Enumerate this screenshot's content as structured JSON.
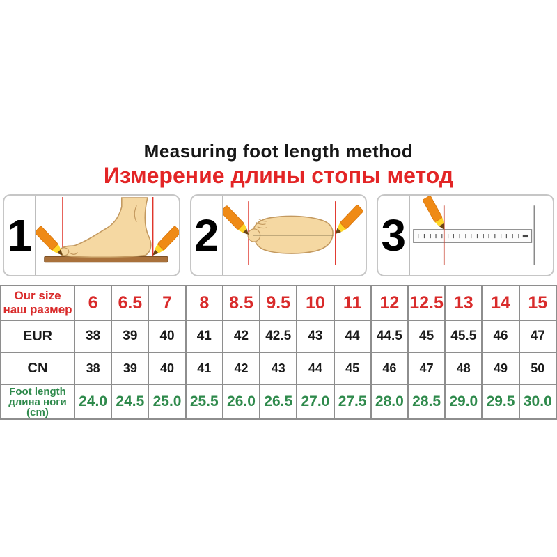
{
  "title": "Measuring foot length method",
  "subtitle": "Измерение длины стопы метод",
  "steps": [
    {
      "number": "1",
      "illustration": "foot-side-view-pencils-marking-toe-and-heel-on-board"
    },
    {
      "number": "2",
      "illustration": "foot-top-view-pencils-marking-length-line"
    },
    {
      "number": "3",
      "illustration": "ruler-measuring-distance-between-marks"
    }
  ],
  "size_table": {
    "rows": [
      {
        "key": "our_size",
        "color": "red",
        "header_lines": [
          "Our size",
          "наш размер"
        ],
        "values": [
          "6",
          "6.5",
          "7",
          "8",
          "8.5",
          "9.5",
          "10",
          "11",
          "12",
          "12.5",
          "13",
          "14",
          "15"
        ]
      },
      {
        "key": "eur",
        "color": "black",
        "header_lines": [
          "EUR"
        ],
        "values": [
          "38",
          "39",
          "40",
          "41",
          "42",
          "42.5",
          "43",
          "44",
          "44.5",
          "45",
          "45.5",
          "46",
          "47"
        ]
      },
      {
        "key": "cn",
        "color": "black",
        "header_lines": [
          "CN"
        ],
        "values": [
          "38",
          "39",
          "40",
          "41",
          "42",
          "43",
          "44",
          "45",
          "46",
          "47",
          "48",
          "49",
          "50"
        ]
      },
      {
        "key": "foot_length",
        "color": "green",
        "header_lines": [
          "Foot length",
          "длина ноги",
          "(cm)"
        ],
        "values": [
          "24.0",
          "24.5",
          "25.0",
          "25.5",
          "26.0",
          "26.5",
          "27.0",
          "27.5",
          "28.0",
          "28.5",
          "29.0",
          "29.5",
          "30.0"
        ]
      }
    ]
  },
  "colors": {
    "subtitle_red": "#e32526",
    "size_red": "#d92b2b",
    "foot_green": "#2f8a4c",
    "text_black": "#1c1c1c",
    "table_border": "#8e8e8e",
    "mark_red": "#e0362c",
    "pencil_orange": "#ef8a16",
    "pencil_yellow": "#ffd628",
    "skin": "#f5d8a2",
    "skin_outline": "#c3995f",
    "board_brown": "#a9713b"
  }
}
